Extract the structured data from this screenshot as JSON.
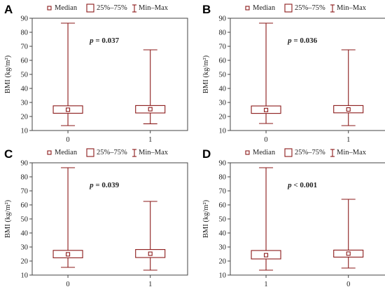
{
  "colors": {
    "box": "#8b1a1a",
    "axis": "#444444",
    "text": "#222222"
  },
  "legend": {
    "median": "Median",
    "iqr": "25%–75%",
    "range": "Min–Max"
  },
  "chart_data": [
    {
      "type": "boxplot",
      "panel_label": "A",
      "ylabel": "BMI (kg/m²)",
      "ylim": [
        10,
        90
      ],
      "yticks": [
        10,
        20,
        30,
        40,
        50,
        60,
        70,
        80,
        90
      ],
      "categories": [
        "0",
        "1"
      ],
      "boxes": [
        {
          "min": 13.5,
          "q1": 22.3,
          "median": 24.8,
          "q3": 27.6,
          "max": 86.5
        },
        {
          "min": 14.8,
          "q1": 22.5,
          "median": 25.2,
          "q3": 27.8,
          "max": 67.5
        }
      ],
      "annotation": {
        "p_symbol": "p",
        "p_text": " = 0.037"
      }
    },
    {
      "type": "boxplot",
      "panel_label": "B",
      "ylabel": "BMI (kg/m²)",
      "ylim": [
        10,
        90
      ],
      "yticks": [
        10,
        20,
        30,
        40,
        50,
        60,
        70,
        80,
        90
      ],
      "categories": [
        "0",
        "1"
      ],
      "boxes": [
        {
          "min": 15.0,
          "q1": 22.2,
          "median": 24.6,
          "q3": 27.5,
          "max": 86.5
        },
        {
          "min": 13.5,
          "q1": 22.6,
          "median": 25.0,
          "q3": 27.8,
          "max": 67.5
        }
      ],
      "annotation": {
        "p_symbol": "p",
        "p_text": " = 0.036"
      }
    },
    {
      "type": "boxplot",
      "panel_label": "C",
      "ylabel": "BMI (kg/m²)",
      "ylim": [
        10,
        90
      ],
      "yticks": [
        10,
        20,
        30,
        40,
        50,
        60,
        70,
        80,
        90
      ],
      "categories": [
        "0",
        "1"
      ],
      "boxes": [
        {
          "min": 15.5,
          "q1": 22.3,
          "median": 24.8,
          "q3": 27.6,
          "max": 86.5
        },
        {
          "min": 13.5,
          "q1": 22.5,
          "median": 25.2,
          "q3": 28.2,
          "max": 62.5
        }
      ],
      "annotation": {
        "p_symbol": "p",
        "p_text": " = 0.039"
      }
    },
    {
      "type": "boxplot",
      "panel_label": "D",
      "ylabel": "BMI (kg/m²)",
      "ylim": [
        10,
        90
      ],
      "yticks": [
        10,
        20,
        30,
        40,
        50,
        60,
        70,
        80,
        90
      ],
      "categories": [
        "1",
        "0"
      ],
      "boxes": [
        {
          "min": 13.5,
          "q1": 21.5,
          "median": 24.2,
          "q3": 27.5,
          "max": 86.5
        },
        {
          "min": 15.0,
          "q1": 22.8,
          "median": 25.3,
          "q3": 27.8,
          "max": 64.0
        }
      ],
      "annotation": {
        "p_symbol": "p",
        "p_text": " < 0.001"
      }
    }
  ]
}
